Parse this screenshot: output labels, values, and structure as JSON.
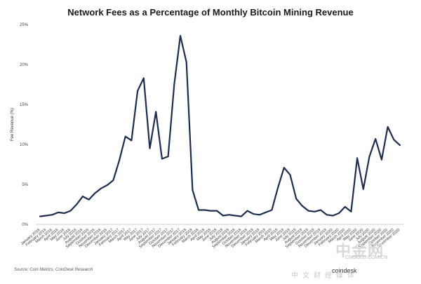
{
  "chart_data": {
    "type": "line",
    "title": "Network Fees as a Percentage of Monthly Bitcoin Mining Revenue",
    "xlabel": "",
    "ylabel": "Fee Revenue (%)",
    "ylim": [
      0,
      25
    ],
    "y_ticks": [
      "0%",
      "5%",
      "10%",
      "15%",
      "20%",
      "25%"
    ],
    "y_tick_values": [
      0,
      5,
      10,
      15,
      20,
      25
    ],
    "grid": false,
    "line_color": "#1f2d4d",
    "categories": [
      "January 2016",
      "February 2016",
      "March 2016",
      "April 2016",
      "May 2016",
      "June 2016",
      "July 2016",
      "August 2016",
      "September 2016",
      "October 2016",
      "November 2016",
      "December 2016",
      "January 2017",
      "February 2017",
      "March 2017",
      "April 2017",
      "May 2017",
      "June 2017",
      "July 2017",
      "August 2017",
      "September 2017",
      "October 2017",
      "November 2017",
      "December 2017",
      "January 2018",
      "February 2018",
      "March 2018",
      "April 2018",
      "May 2018",
      "June 2018",
      "July 2018",
      "August 2018",
      "September 2018",
      "October 2018",
      "November 2018",
      "December 2018",
      "January 2019",
      "February 2019",
      "March 2019",
      "April 2019",
      "May 2019",
      "June 2019",
      "July 2019",
      "August 2019",
      "September 2019",
      "October 2019",
      "November 2019",
      "December 2019",
      "January 2020",
      "February 2020",
      "March 2020",
      "April 2020",
      "May 2020",
      "June 2020",
      "July 2020",
      "August 2020",
      "September 2020",
      "October 2020",
      "November 2020",
      "December 2020"
    ],
    "series": [
      {
        "values": [
          1.0,
          1.1,
          1.2,
          1.5,
          1.4,
          1.7,
          2.5,
          3.5,
          3.1,
          3.9,
          4.5,
          4.9,
          5.5,
          8.0,
          11.0,
          10.5,
          16.7,
          18.3,
          9.5,
          14.1,
          8.2,
          8.5,
          17.5,
          23.6,
          20.3,
          4.3,
          1.8,
          1.8,
          1.7,
          1.7,
          1.1,
          1.2,
          1.1,
          1.0,
          1.7,
          1.3,
          1.2,
          1.5,
          1.8,
          4.6,
          7.1,
          6.2,
          3.2,
          2.3,
          1.7,
          1.6,
          1.8,
          1.2,
          1.1,
          1.4,
          2.2,
          1.6,
          8.3,
          4.4,
          8.5,
          10.7,
          8.1,
          12.2,
          10.6,
          9.9
        ]
      }
    ]
  },
  "source": "Source: Coin Metrics, CoinDesk Research",
  "watermark": {
    "chinese": "中金网",
    "url": "CNGOLD.COM.CN",
    "logo": "coindesk",
    "sub": "中文财经媒体"
  }
}
